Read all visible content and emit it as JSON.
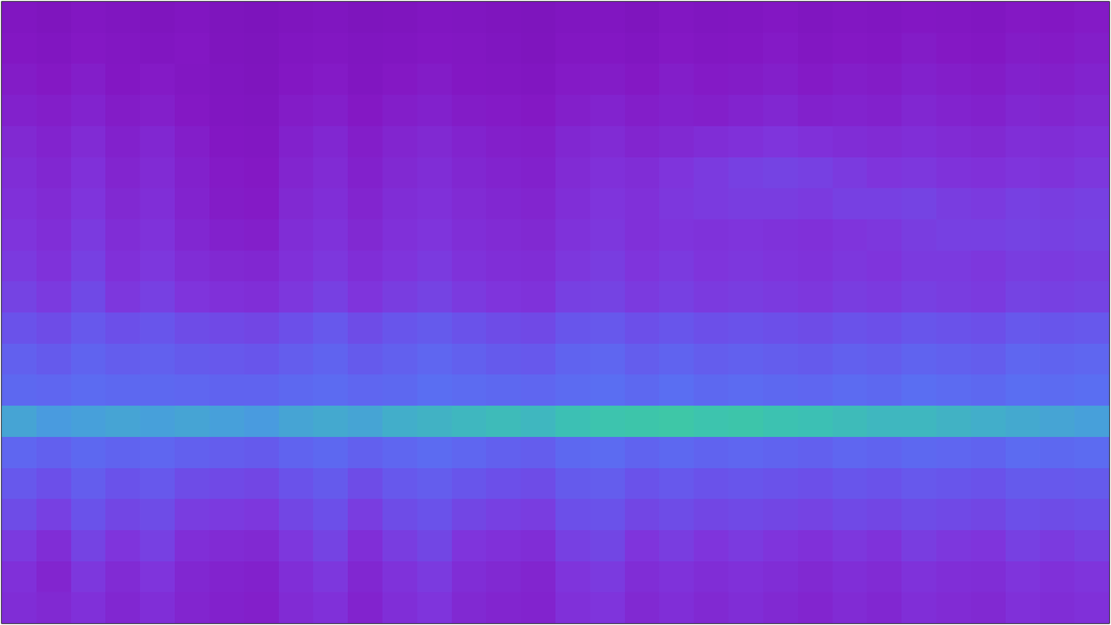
{
  "chart_data": {
    "type": "heatmap",
    "tick_labels": false,
    "zlim": [
      0,
      100
    ],
    "values": [
      [
        22,
        20,
        23,
        21,
        20,
        22,
        19,
        18,
        20,
        21,
        19,
        20,
        22,
        21,
        20,
        19,
        21,
        22,
        20,
        23,
        21,
        22,
        24,
        21,
        23,
        22,
        24,
        23,
        22,
        25,
        24,
        26
      ],
      [
        24,
        22,
        25,
        23,
        22,
        24,
        20,
        19,
        22,
        23,
        21,
        22,
        24,
        23,
        21,
        20,
        23,
        24,
        22,
        25,
        23,
        24,
        26,
        23,
        25,
        24,
        27,
        25,
        24,
        27,
        26,
        28
      ],
      [
        27,
        25,
        28,
        24,
        26,
        23,
        21,
        20,
        24,
        26,
        22,
        25,
        27,
        24,
        23,
        22,
        26,
        27,
        25,
        28,
        26,
        27,
        29,
        26,
        28,
        27,
        30,
        28,
        27,
        30,
        29,
        31
      ],
      [
        30,
        28,
        31,
        27,
        29,
        25,
        22,
        21,
        27,
        29,
        25,
        28,
        30,
        27,
        26,
        25,
        29,
        31,
        28,
        30,
        29,
        31,
        33,
        30,
        31,
        30,
        33,
        31,
        30,
        33,
        32,
        34
      ],
      [
        34,
        31,
        35,
        30,
        33,
        28,
        24,
        23,
        30,
        33,
        28,
        32,
        34,
        31,
        29,
        28,
        33,
        35,
        32,
        34,
        36,
        38,
        40,
        38,
        36,
        35,
        37,
        35,
        34,
        37,
        36,
        38
      ],
      [
        36,
        33,
        38,
        32,
        35,
        30,
        26,
        25,
        32,
        35,
        30,
        34,
        36,
        33,
        31,
        30,
        35,
        38,
        36,
        40,
        42,
        44,
        45,
        44,
        42,
        40,
        41,
        39,
        38,
        40,
        39,
        41
      ],
      [
        38,
        35,
        40,
        34,
        37,
        31,
        27,
        26,
        34,
        37,
        32,
        36,
        38,
        35,
        33,
        32,
        37,
        40,
        38,
        41,
        42,
        43,
        43,
        42,
        44,
        44,
        45,
        43,
        42,
        44,
        43,
        44
      ],
      [
        40,
        37,
        42,
        36,
        39,
        33,
        30,
        29,
        36,
        39,
        34,
        38,
        40,
        37,
        35,
        34,
        39,
        41,
        38,
        40,
        39,
        40,
        39,
        38,
        40,
        41,
        43,
        44,
        44,
        45,
        44,
        45
      ],
      [
        42,
        39,
        44,
        38,
        41,
        36,
        34,
        33,
        38,
        41,
        37,
        40,
        42,
        39,
        37,
        36,
        41,
        43,
        40,
        42,
        40,
        41,
        40,
        39,
        41,
        40,
        42,
        42,
        41,
        43,
        42,
        43
      ],
      [
        45,
        42,
        47,
        41,
        44,
        40,
        38,
        37,
        41,
        44,
        40,
        43,
        45,
        42,
        40,
        39,
        44,
        45,
        42,
        44,
        42,
        43,
        42,
        41,
        43,
        42,
        44,
        43,
        42,
        45,
        44,
        45
      ],
      [
        50,
        48,
        52,
        49,
        51,
        48,
        47,
        46,
        49,
        52,
        48,
        51,
        53,
        50,
        48,
        47,
        51,
        52,
        49,
        51,
        49,
        50,
        49,
        48,
        50,
        49,
        51,
        50,
        49,
        52,
        51,
        52
      ],
      [
        55,
        53,
        56,
        54,
        55,
        53,
        52,
        51,
        54,
        56,
        53,
        55,
        57,
        55,
        53,
        52,
        56,
        57,
        54,
        56,
        54,
        55,
        54,
        53,
        55,
        54,
        56,
        55,
        54,
        57,
        56,
        57
      ],
      [
        58,
        57,
        59,
        58,
        58,
        57,
        56,
        56,
        58,
        59,
        57,
        58,
        60,
        59,
        58,
        57,
        59,
        60,
        58,
        60,
        58,
        59,
        58,
        57,
        59,
        58,
        60,
        59,
        58,
        60,
        59,
        60
      ],
      [
        76,
        74,
        75,
        76,
        75,
        76,
        75,
        74,
        76,
        77,
        76,
        78,
        79,
        80,
        81,
        80,
        82,
        84,
        85,
        86,
        84,
        85,
        83,
        82,
        81,
        80,
        80,
        79,
        78,
        77,
        76,
        75
      ],
      [
        57,
        55,
        58,
        56,
        57,
        55,
        54,
        53,
        56,
        58,
        55,
        57,
        59,
        57,
        55,
        54,
        58,
        59,
        56,
        58,
        56,
        57,
        56,
        55,
        57,
        56,
        58,
        57,
        56,
        59,
        58,
        59
      ],
      [
        52,
        49,
        54,
        50,
        52,
        48,
        47,
        46,
        50,
        53,
        48,
        52,
        54,
        51,
        49,
        48,
        53,
        54,
        50,
        52,
        50,
        51,
        50,
        49,
        51,
        50,
        52,
        51,
        50,
        53,
        52,
        53
      ],
      [
        48,
        44,
        50,
        46,
        48,
        43,
        42,
        41,
        46,
        49,
        43,
        48,
        50,
        46,
        44,
        43,
        49,
        50,
        46,
        48,
        46,
        47,
        46,
        45,
        47,
        46,
        48,
        47,
        46,
        49,
        48,
        49
      ],
      [
        42,
        36,
        45,
        40,
        44,
        37,
        35,
        34,
        41,
        45,
        37,
        43,
        46,
        40,
        38,
        36,
        44,
        46,
        40,
        43,
        40,
        42,
        40,
        38,
        41,
        39,
        43,
        41,
        40,
        44,
        42,
        44
      ],
      [
        38,
        32,
        41,
        35,
        40,
        33,
        31,
        30,
        37,
        41,
        33,
        39,
        42,
        36,
        34,
        32,
        40,
        42,
        36,
        39,
        36,
        38,
        36,
        34,
        37,
        35,
        39,
        37,
        36,
        40,
        38,
        40
      ],
      [
        36,
        34,
        38,
        33,
        37,
        32,
        30,
        29,
        35,
        38,
        31,
        37,
        40,
        34,
        32,
        31,
        38,
        40,
        34,
        37,
        34,
        36,
        34,
        32,
        35,
        33,
        37,
        35,
        34,
        38,
        36,
        38
      ]
    ]
  }
}
